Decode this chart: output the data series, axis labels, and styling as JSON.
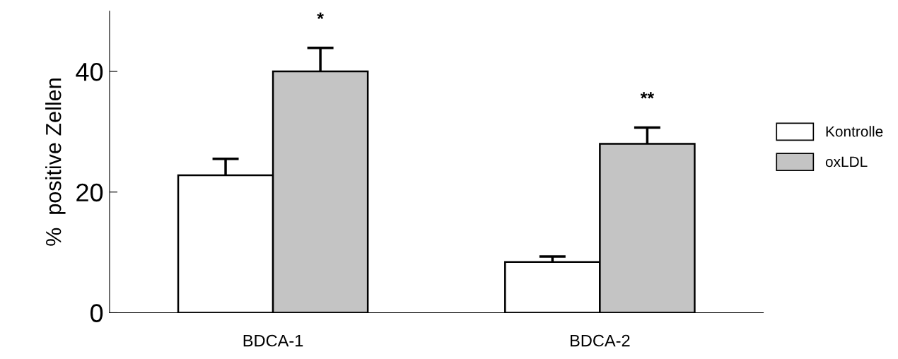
{
  "chart_data": {
    "type": "bar",
    "ylabel": "%  positive Zellen",
    "categories": [
      "BDCA-1",
      "BDCA-2"
    ],
    "series": [
      {
        "name": "Kontrolle",
        "color": "#ffffff",
        "values": [
          22.8,
          8.4
        ],
        "errors": [
          [
            22.8,
            25.5
          ],
          [
            8.4,
            9.3
          ]
        ]
      },
      {
        "name": "oxLDL",
        "color": "#c4c4c4",
        "values": [
          40.0,
          28.0
        ],
        "errors": [
          [
            40.0,
            43.9
          ],
          [
            28.0,
            30.7
          ]
        ]
      }
    ],
    "ylim": [
      0,
      50
    ],
    "yticks": [
      0,
      20,
      40
    ],
    "grid": false,
    "legend": "right",
    "annotations": [
      "*",
      "**"
    ]
  }
}
